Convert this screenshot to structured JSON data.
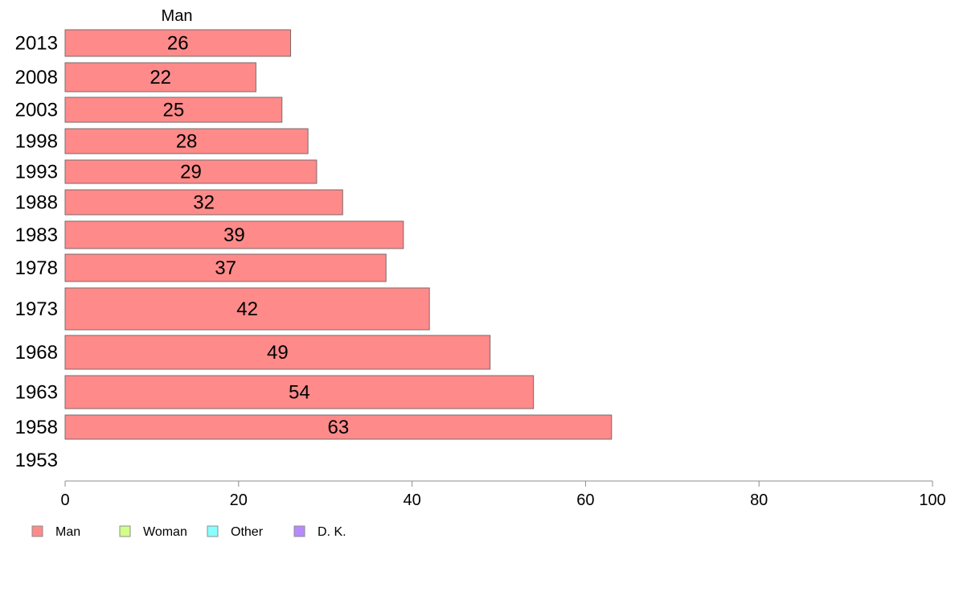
{
  "chart_data": {
    "type": "bar",
    "orientation": "horizontal",
    "title": "",
    "column_header": "Man",
    "categories": [
      "2013",
      "2008",
      "2003",
      "1998",
      "1993",
      "1988",
      "1983",
      "1978",
      "1973",
      "1968",
      "1963",
      "1958",
      "1953"
    ],
    "series": [
      {
        "name": "Man",
        "values": [
          26,
          22,
          25,
          28,
          29,
          32,
          39,
          37,
          42,
          49,
          54,
          63,
          null
        ]
      }
    ],
    "xlim": [
      0,
      100
    ],
    "xticks": [
      "0",
      "20",
      "40",
      "60",
      "80",
      "100"
    ],
    "xlabel": "",
    "ylabel": "",
    "grid": false,
    "legend": {
      "position": "bottom-left",
      "entries": [
        {
          "label": "Man",
          "color": "#ff8a8a"
        },
        {
          "label": "Woman",
          "color": "#d2ff8a"
        },
        {
          "label": "Other",
          "color": "#8affff"
        },
        {
          "label": "D. K.",
          "color": "#b88aff"
        }
      ]
    },
    "colors": {
      "bar_fill": "#ff8a8a",
      "bar_stroke": "#7a6a6a",
      "axis": "#8c8c8c"
    }
  }
}
